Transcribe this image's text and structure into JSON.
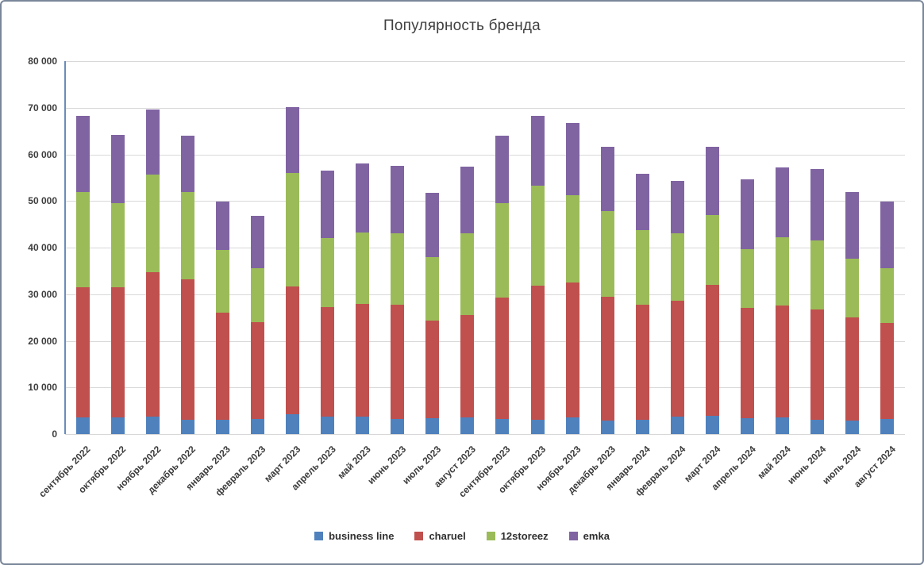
{
  "chart_data": {
    "type": "bar",
    "stacked": true,
    "title": "Популярность бренда",
    "categories": [
      "сентябрь 2022",
      "октябрь 2022",
      "ноябрь 2022",
      "декабрь 2022",
      "январь 2023",
      "февраль 2023",
      "март 2023",
      "апрель 2023",
      "май 2023",
      "июнь 2023",
      "июль 2023",
      "август 2023",
      "сентябрь 2023",
      "октябрь 2023",
      "ноябрь 2023",
      "декабрь 2023",
      "январь 2024",
      "февраль 2024",
      "март 2024",
      "апрель 2024",
      "май 2024",
      "июнь 2024",
      "июль 2024",
      "август 2024"
    ],
    "series": [
      {
        "name": "business line",
        "color": "#4F81BD",
        "values": [
          3500,
          3500,
          3700,
          3000,
          3000,
          3200,
          4200,
          3700,
          3700,
          3300,
          3400,
          3500,
          3200,
          3000,
          3500,
          2900,
          3000,
          3700,
          3900,
          3400,
          3600,
          3100,
          2900,
          3300
        ]
      },
      {
        "name": "charuel",
        "color": "#C0504D",
        "values": [
          28000,
          28000,
          31000,
          30200,
          23000,
          20800,
          27500,
          23600,
          24300,
          24500,
          20900,
          22100,
          26000,
          28900,
          29000,
          26600,
          24800,
          24900,
          28100,
          23600,
          24000,
          23700,
          22100,
          20500
        ]
      },
      {
        "name": "12storeez",
        "color": "#9BBB59",
        "values": [
          20500,
          18000,
          21000,
          18800,
          13500,
          11500,
          24300,
          14700,
          15200,
          15200,
          13700,
          17400,
          20300,
          21300,
          18800,
          18300,
          15900,
          14400,
          15000,
          12700,
          14600,
          14700,
          12700,
          11700
        ]
      },
      {
        "name": "emka",
        "color": "#8064A2",
        "values": [
          16200,
          14700,
          14000,
          12000,
          10300,
          11300,
          14200,
          14500,
          14800,
          14500,
          13700,
          14300,
          14500,
          15000,
          15400,
          13800,
          12200,
          11300,
          14600,
          15000,
          15000,
          15300,
          14300,
          14300
        ]
      }
    ],
    "ylim": [
      0,
      80000
    ],
    "y_ticks": [
      0,
      10000,
      20000,
      30000,
      40000,
      50000,
      60000,
      70000,
      80000
    ],
    "y_tick_labels": [
      "0",
      "10 000",
      "20 000",
      "30 000",
      "40 000",
      "50 000",
      "60 000",
      "70 000",
      "80 000"
    ],
    "grid": true,
    "legend_position": "bottom",
    "axis_color": "#6b8cba",
    "gridline_color": "#d8d8d8"
  }
}
